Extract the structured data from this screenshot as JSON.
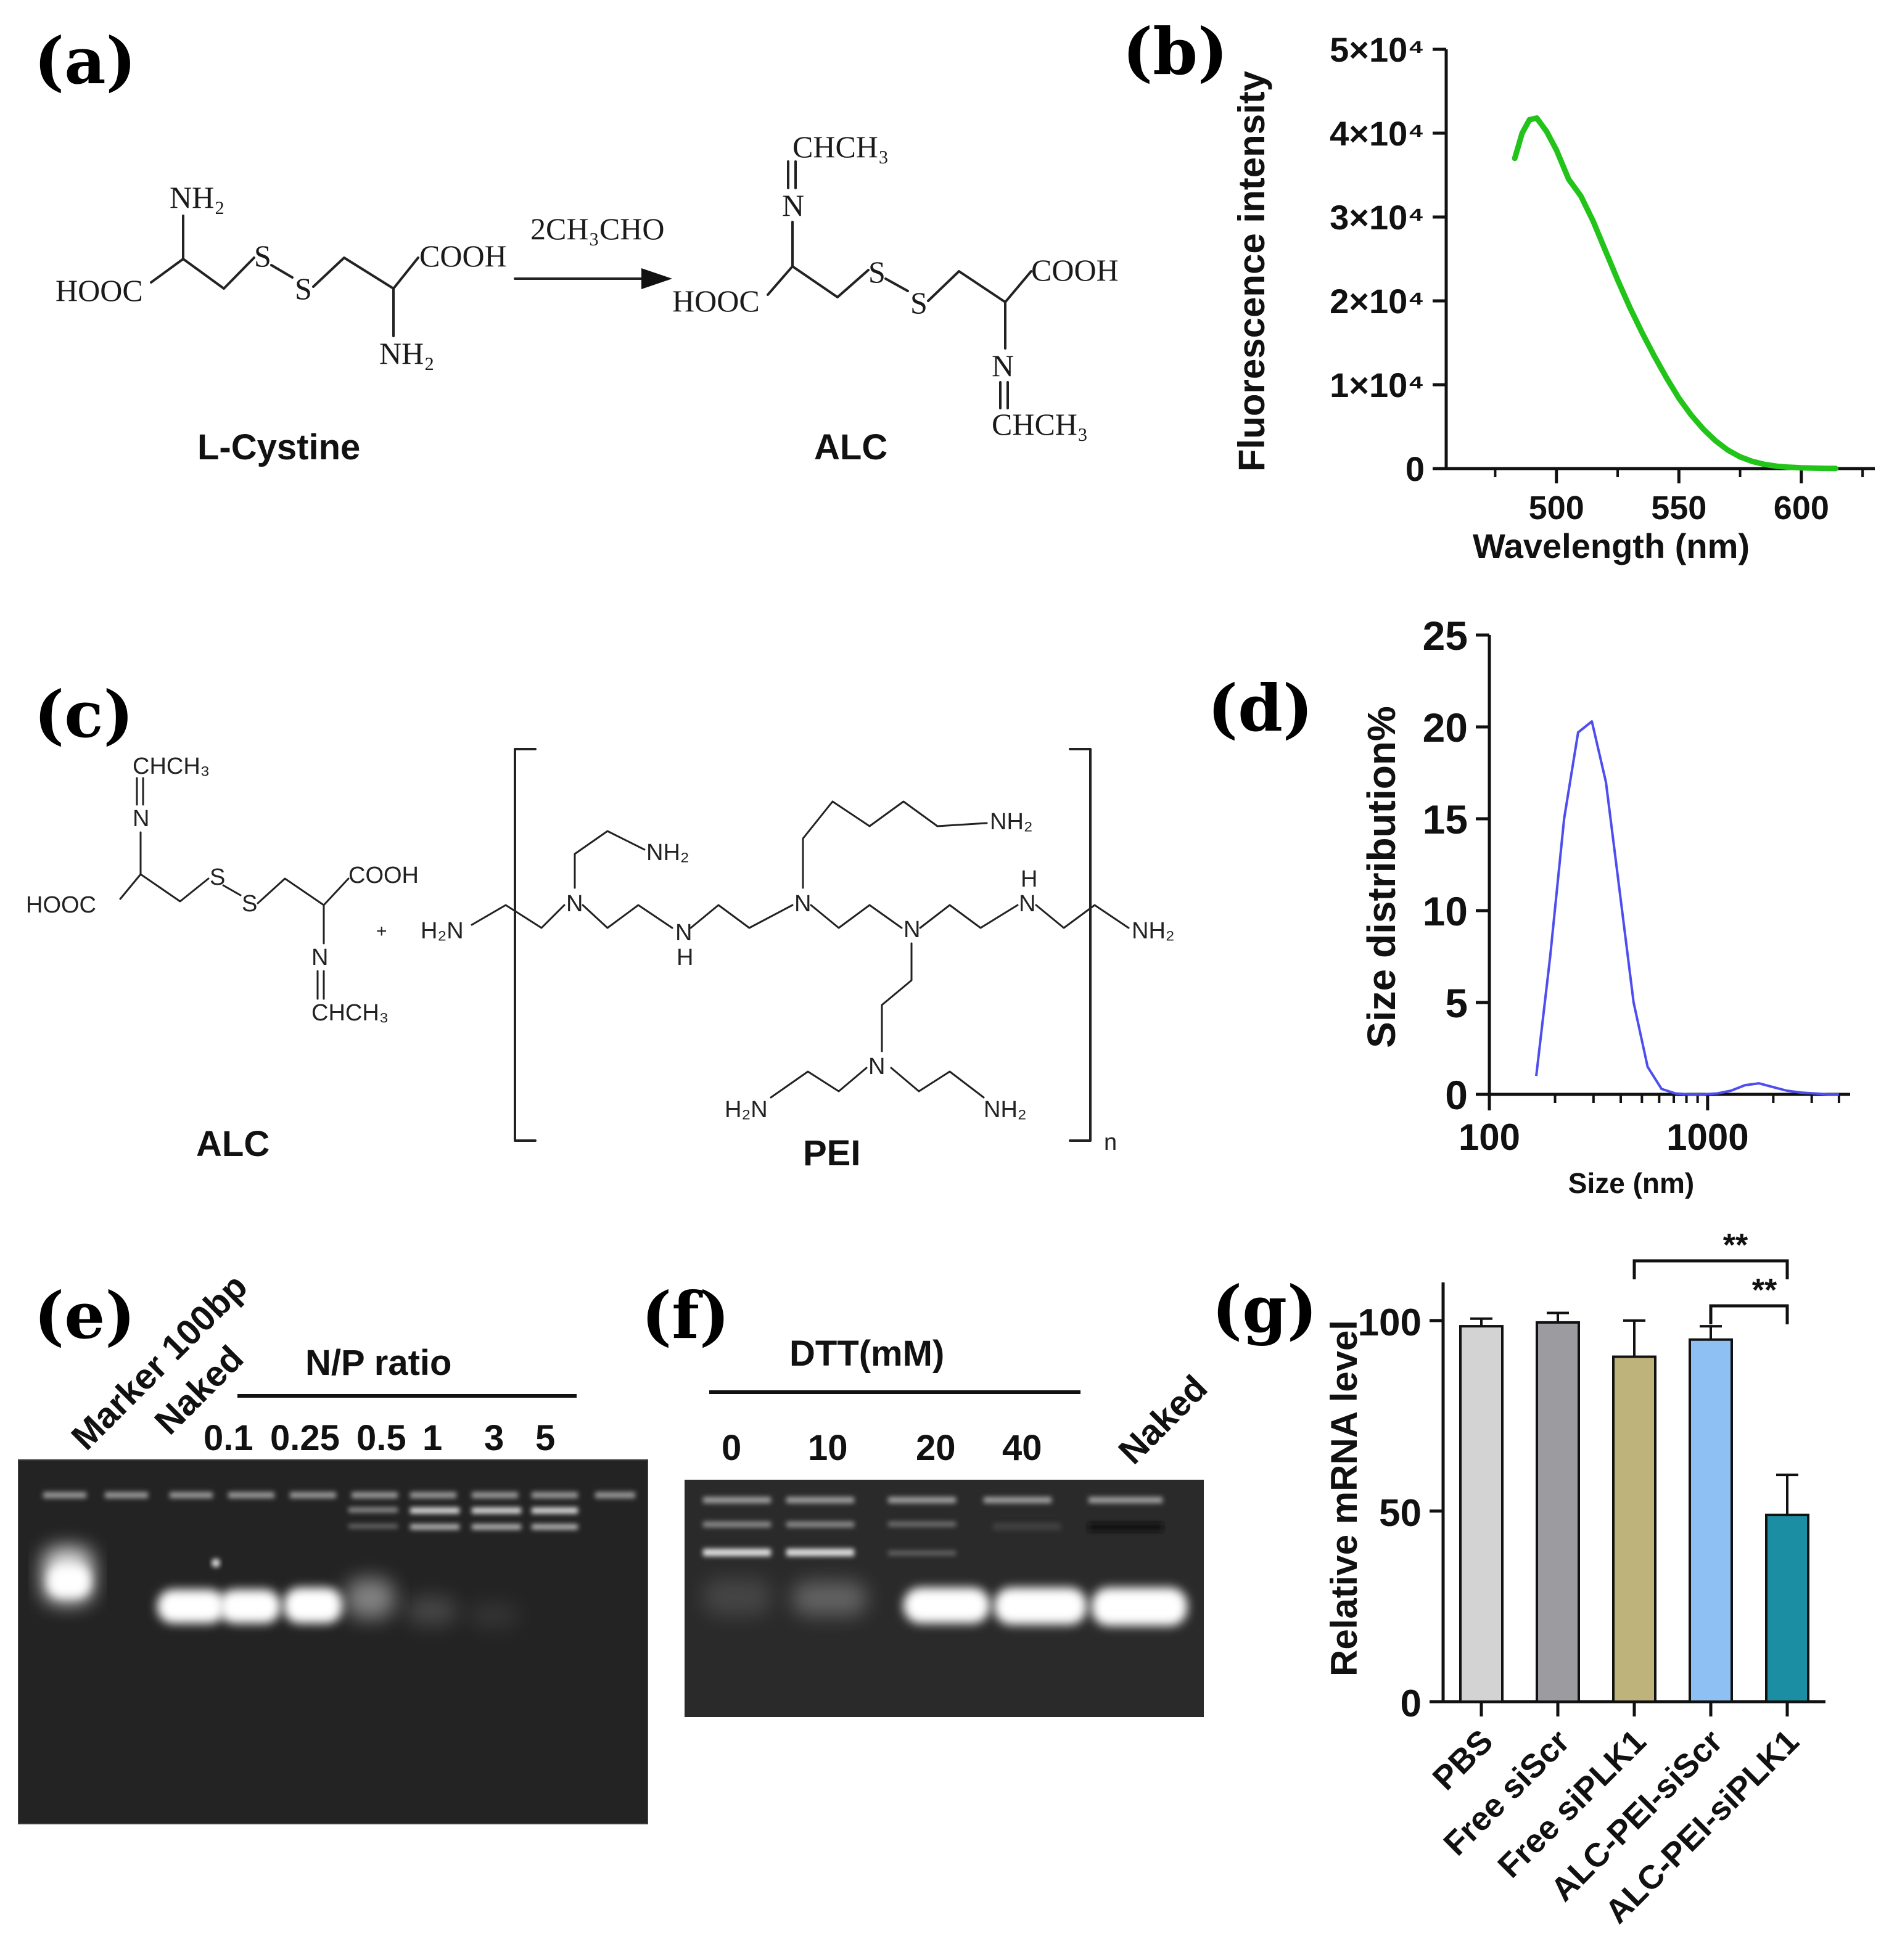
{
  "figure": {
    "panel_labels": {
      "a": "(a)",
      "b": "(b)",
      "c": "(c)",
      "d": "(d)",
      "e": "(e)",
      "f": "(f)",
      "g": "(g)"
    },
    "panel_a": {
      "reagent": "2CH₃CHO",
      "reactant_name": "L-Cystine",
      "product_name": "ALC",
      "atoms": {
        "nh2": "NH₂",
        "hooc": "HOOC",
        "cooh": "COOH",
        "s": "S",
        "n": "N",
        "chch3": "CHCH₃"
      }
    },
    "panel_c": {
      "left_name": "ALC",
      "right_name": "PEI",
      "plus": "+",
      "subscript_n": "n",
      "atoms": {
        "h2n": "H₂N",
        "nh2": "NH₂",
        "n": "N",
        "h": "H",
        "hooc": "HOOC",
        "cooh": "COOH",
        "s": "S",
        "chch3": "CHCH₃"
      }
    },
    "panel_e": {
      "lanes": [
        "Marker 100bp",
        "Naked"
      ],
      "group_label": "N/P ratio",
      "ratios": [
        "0.1",
        "0.25",
        "0.5",
        "1",
        "3",
        "5"
      ]
    },
    "panel_f": {
      "group_label": "DTT(mM)",
      "concentrations": [
        "0",
        "10",
        "20",
        "40"
      ],
      "last_lane": "Naked"
    }
  },
  "chart_data": [
    {
      "type": "line",
      "panel": "b",
      "ylabel": "Fluorescence intensity",
      "xlabel": "Wavelength (nm)",
      "xlim": [
        455,
        630
      ],
      "ylim": [
        0,
        50000
      ],
      "xticks": [
        "500",
        "550",
        "600"
      ],
      "yticks": [
        "0",
        "1×10⁴",
        "2×10⁴",
        "3×10⁴",
        "4×10⁴",
        "5×10⁴"
      ],
      "color": "#22c41a",
      "x": [
        483,
        486,
        489,
        492,
        496,
        500,
        505,
        510,
        515,
        520,
        525,
        530,
        535,
        540,
        545,
        550,
        555,
        560,
        565,
        570,
        575,
        580,
        585,
        590,
        595,
        600,
        605,
        610,
        614
      ],
      "y": [
        37000,
        40000,
        41600,
        41800,
        40200,
        38000,
        34500,
        32500,
        29500,
        26000,
        22500,
        19200,
        16200,
        13400,
        10800,
        8400,
        6400,
        4700,
        3300,
        2200,
        1400,
        850,
        500,
        280,
        160,
        90,
        50,
        25,
        15
      ]
    },
    {
      "type": "line",
      "panel": "d",
      "ylabel": "Size distribution%",
      "xlabel": "Size (nm)",
      "xscale": "log",
      "xlim": [
        100,
        4500
      ],
      "ylim": [
        0,
        25
      ],
      "xticks": [
        "100",
        "1000"
      ],
      "yticks": [
        "0",
        "5",
        "10",
        "15",
        "20",
        "25"
      ],
      "color": "#4e4ef0",
      "x": [
        164,
        190,
        220,
        255,
        295,
        342,
        396,
        458,
        531,
        615,
        712,
        825,
        955,
        1106,
        1281,
        1484,
        1718,
        1990,
        2305,
        2669,
        3092,
        3580,
        4000
      ],
      "y": [
        1.0,
        7.5,
        15.0,
        19.7,
        20.3,
        17.0,
        11.0,
        5.0,
        1.5,
        0.3,
        0.05,
        0.0,
        0.0,
        0.05,
        0.2,
        0.5,
        0.6,
        0.4,
        0.2,
        0.1,
        0.05,
        0.0,
        0.0
      ]
    },
    {
      "type": "bar",
      "panel": "g",
      "ylabel": "Relative mRNA  level",
      "categories": [
        "PBS",
        "Free siScr",
        "Free siPLK1",
        "ALC-PEI-siScr",
        "ALC-PEI-siPLK1"
      ],
      "values": [
        98.5,
        99.5,
        90.5,
        95,
        49
      ],
      "errors": [
        2,
        2.5,
        9.5,
        3.5,
        10.5
      ],
      "colors": [
        "#d3d3d3",
        "#9c9ca0",
        "#bfb37c",
        "#8ec0f4",
        "#1c8ea4"
      ],
      "ylim": [
        0,
        110
      ],
      "yticks": [
        "0",
        "50",
        "100"
      ],
      "significance": [
        {
          "from": "Free siPLK1",
          "to": "ALC-PEI-siPLK1",
          "label": "**"
        },
        {
          "from": "ALC-PEI-siScr",
          "to": "ALC-PEI-siPLK1",
          "label": "**"
        }
      ]
    }
  ]
}
